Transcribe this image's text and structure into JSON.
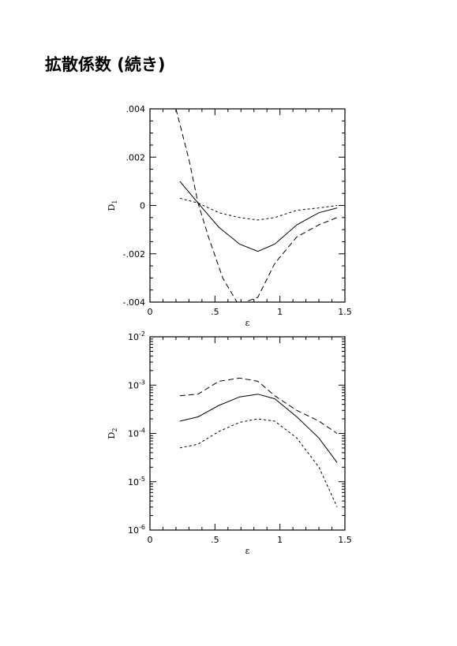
{
  "page": {
    "title": "拡散係数 (続き)"
  },
  "chart_data": [
    {
      "type": "line",
      "xlabel": "ε",
      "ylabel": "D1",
      "ylabel_main": "D",
      "ylabel_sub": "1",
      "xlim": [
        0,
        1.5
      ],
      "ylim": [
        -0.004,
        0.004
      ],
      "x_ticks": [
        0,
        0.5,
        1,
        1.5
      ],
      "x_tick_labels": [
        "0",
        ".5",
        "1",
        "1.5"
      ],
      "y_ticks": [
        -0.004,
        -0.002,
        0,
        0.002,
        0.004
      ],
      "y_tick_labels": [
        "-.004",
        "-.002",
        "0",
        ".002",
        ".004"
      ],
      "series": [
        {
          "style": "solid",
          "x": [
            0.23,
            0.37,
            0.53,
            0.69,
            0.83,
            0.96,
            1.13,
            1.3,
            1.44
          ],
          "y": [
            0.001,
            0.0001,
            -0.0009,
            -0.0016,
            -0.0019,
            -0.0016,
            -0.0008,
            -0.0003,
            -0.0001
          ]
        },
        {
          "style": "dashed",
          "x": [
            0.2,
            0.3,
            0.37,
            0.45,
            0.56,
            0.68,
            0.83,
            0.96,
            1.13,
            1.3,
            1.44
          ],
          "y": [
            0.004,
            0.0019,
            0.0001,
            -0.0013,
            -0.003,
            -0.0041,
            -0.0038,
            -0.0024,
            -0.0013,
            -0.0008,
            -0.0005
          ]
        },
        {
          "style": "dotted",
          "x": [
            0.23,
            0.37,
            0.53,
            0.69,
            0.83,
            0.96,
            1.13,
            1.3,
            1.44
          ],
          "y": [
            0.0003,
            0.0001,
            -0.0003,
            -0.0005,
            -0.0006,
            -0.0005,
            -0.0002,
            -0.0001,
            0
          ]
        }
      ]
    },
    {
      "type": "line",
      "xlabel": "ε",
      "ylabel": "D2",
      "ylabel_main": "D",
      "ylabel_sub": "2",
      "xlim": [
        0,
        1.5
      ],
      "ylim": [
        1e-06,
        0.01
      ],
      "log_y": true,
      "x_ticks": [
        0,
        0.5,
        1,
        1.5
      ],
      "x_tick_labels": [
        "0",
        ".5",
        "1",
        "1.5"
      ],
      "y_ticks": [
        1e-06,
        1e-05,
        0.0001,
        0.001,
        0.01
      ],
      "y_tick_base": "10",
      "y_tick_exponents": [
        "-6",
        "-5",
        "-4",
        "-3",
        "-2"
      ],
      "series": [
        {
          "style": "solid",
          "x": [
            0.23,
            0.37,
            0.53,
            0.69,
            0.83,
            0.96,
            1.13,
            1.3,
            1.44
          ],
          "y": [
            0.00018,
            0.00022,
            0.00038,
            0.00057,
            0.00065,
            0.00052,
            0.00022,
            8e-05,
            2.5e-05
          ]
        },
        {
          "style": "dashed",
          "x": [
            0.23,
            0.37,
            0.53,
            0.69,
            0.83,
            0.96,
            1.13,
            1.3,
            1.44
          ],
          "y": [
            0.0006,
            0.00065,
            0.0012,
            0.0014,
            0.0012,
            0.0006,
            0.0003,
            0.00018,
            0.0001
          ]
        },
        {
          "style": "dotted",
          "x": [
            0.23,
            0.37,
            0.53,
            0.69,
            0.83,
            0.96,
            1.13,
            1.3,
            1.44
          ],
          "y": [
            5e-05,
            6e-05,
            0.00011,
            0.00017,
            0.0002,
            0.00018,
            8e-05,
            2e-05,
            3e-06
          ]
        }
      ]
    }
  ]
}
